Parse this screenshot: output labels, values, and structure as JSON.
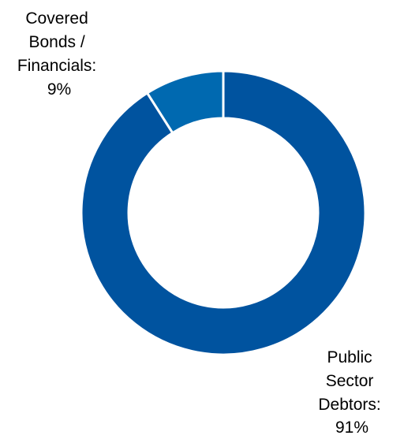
{
  "chart_data": {
    "type": "pie",
    "variant": "donut",
    "title": "",
    "slices": [
      {
        "name": "Covered Bonds / Financials",
        "value": 9,
        "label_lines": [
          "Covered",
          "Bonds /",
          "Financials:",
          "9%"
        ],
        "color": "#0069B0"
      },
      {
        "name": "Public Sector Debtors",
        "value": 91,
        "label_lines": [
          "Public",
          "Sector",
          "Debtors:",
          "91%"
        ],
        "color": "#00539F"
      }
    ],
    "separator_color": "#ffffff",
    "legend": "none"
  }
}
